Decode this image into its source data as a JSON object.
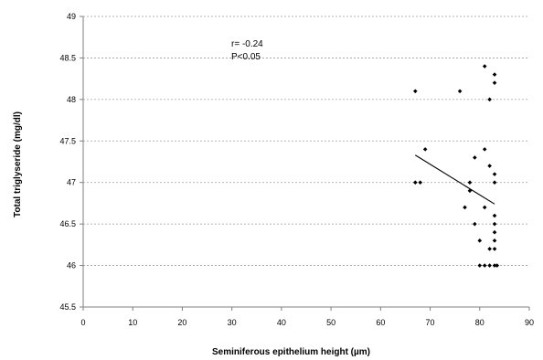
{
  "chart_data": {
    "type": "scatter",
    "title": "",
    "xlabel": "Seminiferous epithelium height (µm)",
    "ylabel": "Total triglyseride (mg/dl)",
    "xlim": [
      0,
      90
    ],
    "ylim": [
      45.5,
      49
    ],
    "x_ticks": [
      "0",
      "10",
      "20",
      "30",
      "40",
      "50",
      "60",
      "70",
      "80",
      "90"
    ],
    "y_ticks": [
      "45.5",
      "46",
      "46.5",
      "47",
      "47.5",
      "48",
      "48.5",
      "49"
    ],
    "grid": "horizontal dashed",
    "legend": "none",
    "annotations": [
      "r= -0.24",
      "P<0.05"
    ],
    "points": [
      {
        "x": 67,
        "y": 48.1
      },
      {
        "x": 67,
        "y": 47.0
      },
      {
        "x": 68,
        "y": 47.0
      },
      {
        "x": 69,
        "y": 47.4
      },
      {
        "x": 76,
        "y": 48.1
      },
      {
        "x": 77,
        "y": 46.7
      },
      {
        "x": 78,
        "y": 47.0
      },
      {
        "x": 78,
        "y": 46.9
      },
      {
        "x": 79,
        "y": 47.3
      },
      {
        "x": 79,
        "y": 46.5
      },
      {
        "x": 80,
        "y": 46.3
      },
      {
        "x": 80,
        "y": 46.0
      },
      {
        "x": 81,
        "y": 48.4
      },
      {
        "x": 81,
        "y": 47.4
      },
      {
        "x": 81,
        "y": 46.7
      },
      {
        "x": 81,
        "y": 46.0
      },
      {
        "x": 82,
        "y": 48.0
      },
      {
        "x": 82,
        "y": 47.2
      },
      {
        "x": 82,
        "y": 46.2
      },
      {
        "x": 82,
        "y": 46.0
      },
      {
        "x": 83,
        "y": 48.3
      },
      {
        "x": 83,
        "y": 48.2
      },
      {
        "x": 83,
        "y": 47.1
      },
      {
        "x": 83,
        "y": 47.0
      },
      {
        "x": 83,
        "y": 46.6
      },
      {
        "x": 83,
        "y": 46.5
      },
      {
        "x": 83,
        "y": 46.4
      },
      {
        "x": 83,
        "y": 46.3
      },
      {
        "x": 83,
        "y": 46.2
      },
      {
        "x": 83,
        "y": 46.0
      },
      {
        "x": 83.5,
        "y": 46.0
      }
    ],
    "trendline": {
      "x": [
        67,
        83
      ],
      "y": [
        47.33,
        46.74
      ]
    },
    "colors": {
      "points": "#000000",
      "trendline": "#000000",
      "grid": "#9a9a9a",
      "axis": "#7f7f7f"
    }
  }
}
